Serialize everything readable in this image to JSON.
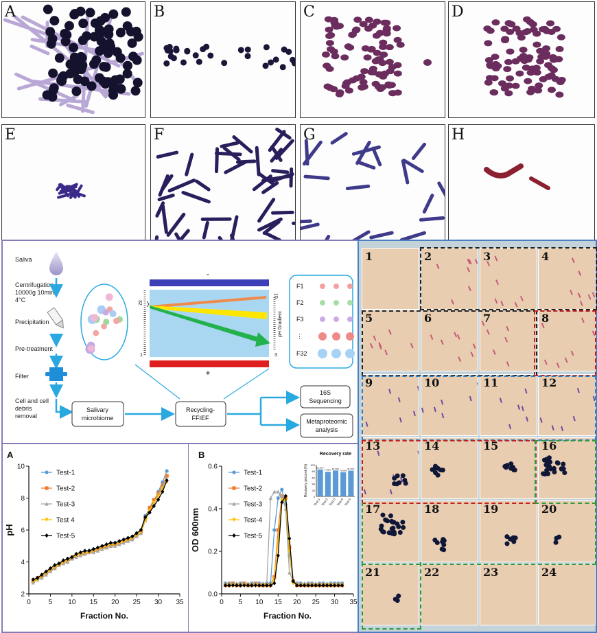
{
  "micrographs": [
    "A",
    "B",
    "C",
    "D",
    "E",
    "F",
    "G",
    "H"
  ],
  "workflow": {
    "steps": [
      "Saliva",
      "Centrifugation\n10000g  10min\n4°C",
      "Precipitation",
      "Pre-treatment",
      "Filter",
      "Cell and cell\ndebris\nremoval"
    ],
    "boxes": {
      "microbiome": "Salivary\nmicrobiome",
      "ffief": "Recycling-\nFFIEF",
      "seq": "16S\nSequencing",
      "meta": "Metaproteomic\nanalysis"
    },
    "electrodes": {
      "neg": "-",
      "pos": "+"
    },
    "chamber": {
      "left_top": "32",
      "left_bottom": "1",
      "right_top": "10",
      "right_bottom": "3",
      "gradient": "pH  Gradient"
    },
    "fractions": [
      "F1",
      "F2",
      "F3",
      "⋮",
      "F32"
    ]
  },
  "grid_numbers": [
    "1",
    "2",
    "3",
    "4",
    "5",
    "6",
    "7",
    "8",
    "9",
    "10",
    "11",
    "12",
    "13",
    "14",
    "15",
    "16",
    "17",
    "18",
    "19",
    "20",
    "21",
    "22",
    "23",
    "24"
  ],
  "colors": {
    "frame_blue": "#4a7fc1",
    "frame_purple": "#8a7ab8",
    "arrow_blue": "#29a9e0",
    "gel_blue": "#a9d7f1",
    "electrode_top": "#3d3fb8",
    "electrode_bottom": "#e02020",
    "test1": "#5b9bd5",
    "test2": "#ed7d31",
    "test3": "#a5a5a5",
    "test4": "#ffc000",
    "test5": "#000000"
  },
  "chart_data": [
    {
      "type": "line",
      "panel_label": "A",
      "xlabel": "Fraction No.",
      "ylabel": "pH",
      "xlim": [
        0,
        35
      ],
      "ylim": [
        2,
        10
      ],
      "xticks": [
        0,
        5,
        10,
        15,
        20,
        25,
        30,
        35
      ],
      "yticks": [
        2,
        4,
        6,
        8,
        10
      ],
      "x": [
        1,
        2,
        3,
        4,
        5,
        6,
        7,
        8,
        9,
        10,
        11,
        12,
        13,
        14,
        15,
        16,
        17,
        18,
        19,
        20,
        21,
        22,
        23,
        24,
        25,
        26,
        27,
        28,
        29,
        30,
        31,
        32
      ],
      "series": [
        {
          "name": "Test-1",
          "values": [
            2.8,
            2.9,
            3.1,
            3.3,
            3.5,
            3.7,
            3.9,
            4.0,
            4.2,
            4.3,
            4.4,
            4.5,
            4.6,
            4.7,
            4.8,
            4.8,
            4.9,
            5.0,
            5.1,
            5.2,
            5.3,
            5.4,
            5.5,
            5.6,
            5.8,
            6.0,
            6.9,
            7.3,
            7.8,
            8.4,
            9.0,
            9.7
          ]
        },
        {
          "name": "Test-2",
          "values": [
            2.8,
            3.0,
            3.1,
            3.3,
            3.5,
            3.6,
            3.8,
            4.0,
            4.1,
            4.2,
            4.4,
            4.5,
            4.5,
            4.6,
            4.7,
            4.8,
            4.9,
            4.9,
            5.0,
            5.1,
            5.2,
            5.3,
            5.4,
            5.5,
            5.7,
            5.9,
            6.7,
            7.4,
            7.9,
            8.3,
            8.8,
            9.4
          ]
        },
        {
          "name": "Test-3",
          "values": [
            2.7,
            2.9,
            3.0,
            3.2,
            3.4,
            3.6,
            3.8,
            3.9,
            4.0,
            4.2,
            4.3,
            4.4,
            4.5,
            4.6,
            4.6,
            4.7,
            4.8,
            4.9,
            5.0,
            5.0,
            5.1,
            5.2,
            5.3,
            5.4,
            5.6,
            5.8,
            6.6,
            7.1,
            7.7,
            8.2,
            8.7,
            9.2
          ]
        },
        {
          "name": "Test 4",
          "values": [
            2.8,
            2.9,
            3.1,
            3.3,
            3.5,
            3.7,
            3.8,
            4.0,
            4.1,
            4.3,
            4.4,
            4.5,
            4.6,
            4.6,
            4.7,
            4.8,
            4.9,
            5.0,
            5.1,
            5.1,
            5.2,
            5.3,
            5.4,
            5.5,
            5.7,
            5.9,
            6.6,
            7.2,
            7.7,
            8.1,
            8.6,
            9.0
          ]
        },
        {
          "name": "Test-5",
          "values": [
            2.9,
            3.0,
            3.2,
            3.4,
            3.6,
            3.8,
            3.9,
            4.1,
            4.2,
            4.3,
            4.5,
            4.6,
            4.7,
            4.7,
            4.8,
            4.9,
            5.0,
            5.1,
            5.2,
            5.2,
            5.3,
            5.4,
            5.5,
            5.6,
            5.8,
            6.0,
            6.8,
            7.1,
            7.5,
            7.9,
            8.4,
            9.1
          ]
        }
      ]
    },
    {
      "type": "line",
      "panel_label": "B",
      "xlabel": "Fraction No.",
      "ylabel": "OD 600nm",
      "xlim": [
        0,
        35
      ],
      "ylim": [
        0,
        0.6
      ],
      "xticks": [
        0,
        5,
        10,
        15,
        20,
        25,
        30,
        35
      ],
      "yticks": [
        0.0,
        0.2,
        0.4,
        0.6
      ],
      "x": [
        1,
        2,
        3,
        4,
        5,
        6,
        7,
        8,
        9,
        10,
        11,
        12,
        13,
        14,
        15,
        16,
        17,
        18,
        19,
        20,
        21,
        22,
        23,
        24,
        25,
        26,
        27,
        28,
        29,
        30,
        31,
        32
      ],
      "series": [
        {
          "name": "Test-1",
          "values": [
            0.05,
            0.05,
            0.05,
            0.04,
            0.05,
            0.05,
            0.04,
            0.05,
            0.05,
            0.05,
            0.04,
            0.05,
            0.05,
            0.3,
            0.45,
            0.49,
            0.42,
            0.18,
            0.06,
            0.05,
            0.05,
            0.04,
            0.05,
            0.05,
            0.04,
            0.05,
            0.05,
            0.04,
            0.05,
            0.05,
            0.05,
            0.05
          ]
        },
        {
          "name": "Test-2",
          "values": [
            0.04,
            0.04,
            0.05,
            0.04,
            0.04,
            0.05,
            0.04,
            0.04,
            0.05,
            0.04,
            0.04,
            0.04,
            0.04,
            0.08,
            0.3,
            0.46,
            0.45,
            0.22,
            0.06,
            0.04,
            0.04,
            0.04,
            0.04,
            0.04,
            0.04,
            0.04,
            0.04,
            0.04,
            0.04,
            0.04,
            0.04,
            0.04
          ]
        },
        {
          "name": "Test-3",
          "values": [
            0.05,
            0.05,
            0.05,
            0.05,
            0.05,
            0.05,
            0.05,
            0.05,
            0.05,
            0.05,
            0.05,
            0.05,
            0.45,
            0.48,
            0.48,
            0.46,
            0.4,
            0.1,
            0.06,
            0.05,
            0.05,
            0.05,
            0.05,
            0.05,
            0.05,
            0.05,
            0.05,
            0.05,
            0.05,
            0.05,
            0.05,
            0.05
          ]
        },
        {
          "name": "Test-4",
          "values": [
            0.04,
            0.04,
            0.04,
            0.04,
            0.04,
            0.04,
            0.04,
            0.04,
            0.04,
            0.04,
            0.04,
            0.04,
            0.04,
            0.07,
            0.25,
            0.44,
            0.44,
            0.2,
            0.05,
            0.04,
            0.04,
            0.04,
            0.04,
            0.04,
            0.04,
            0.04,
            0.04,
            0.04,
            0.04,
            0.04,
            0.04,
            0.04
          ]
        },
        {
          "name": "Test-5",
          "values": [
            0.04,
            0.04,
            0.04,
            0.04,
            0.04,
            0.04,
            0.04,
            0.04,
            0.04,
            0.04,
            0.04,
            0.04,
            0.04,
            0.05,
            0.18,
            0.43,
            0.46,
            0.26,
            0.06,
            0.04,
            0.04,
            0.04,
            0.04,
            0.04,
            0.04,
            0.04,
            0.04,
            0.04,
            0.04,
            0.04,
            0.04,
            0.04
          ]
        }
      ]
    },
    {
      "type": "bar",
      "title": "Recovery rate",
      "ylabel": "Recovery percent (%)",
      "ylim": [
        0,
        100
      ],
      "yticks": [
        0,
        20,
        40,
        60,
        80,
        100
      ],
      "categories": [
        "Test-1",
        "Test-2",
        "Test-3",
        "Test-4",
        "Test-5"
      ],
      "values": [
        85.2,
        77.8,
        82.0,
        76.6,
        81.5
      ]
    }
  ]
}
